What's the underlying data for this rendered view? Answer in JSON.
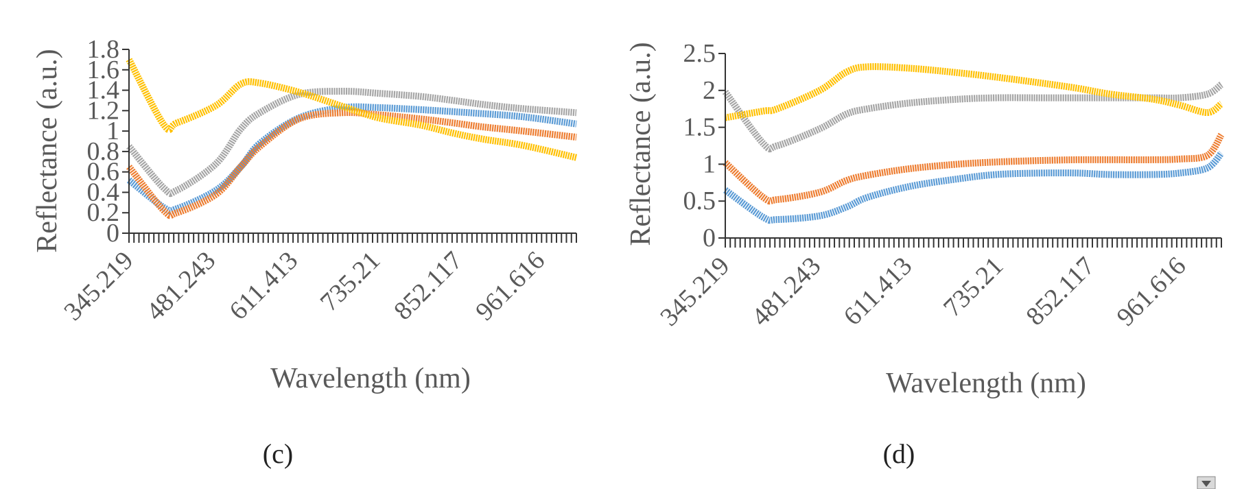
{
  "chart_data": [
    {
      "type": "line",
      "panel_label": "(c)",
      "xlabel": "Wavelength (nm)",
      "ylabel": "Reflectance (a.u.)",
      "x_tick_labels": [
        "345.219",
        "481.243",
        "611.413",
        "735.21",
        "852.117",
        "961.616"
      ],
      "xlim": [
        345.219,
        1045
      ],
      "ylim": [
        0,
        1.8
      ],
      "y_ticks": [
        "0",
        "0.2",
        "0.4",
        "0.6",
        "0.8",
        "1",
        "1.2",
        "1.4",
        "1.6",
        "1.8"
      ],
      "grid": false,
      "x": [
        345.219,
        400,
        420,
        481.243,
        520,
        550,
        611.413,
        680,
        735.21,
        800,
        852.117,
        900,
        961.616,
        1045
      ],
      "series": [
        {
          "color": "#5b9bd5",
          "values": [
            0.52,
            0.25,
            0.24,
            0.42,
            0.65,
            0.88,
            1.13,
            1.23,
            1.23,
            1.21,
            1.19,
            1.17,
            1.14,
            1.07
          ]
        },
        {
          "color": "#ed7d31",
          "values": [
            0.65,
            0.22,
            0.2,
            0.38,
            0.65,
            0.85,
            1.12,
            1.18,
            1.16,
            1.12,
            1.08,
            1.04,
            1.0,
            0.94
          ]
        },
        {
          "color": "#a5a5a5",
          "values": [
            0.85,
            0.44,
            0.42,
            0.68,
            1.02,
            1.18,
            1.36,
            1.39,
            1.37,
            1.34,
            1.3,
            1.26,
            1.22,
            1.18
          ]
        },
        {
          "color": "#ffc000",
          "values": [
            1.7,
            1.06,
            1.08,
            1.25,
            1.46,
            1.47,
            1.38,
            1.24,
            1.13,
            1.06,
            0.98,
            0.92,
            0.86,
            0.74
          ]
        }
      ]
    },
    {
      "type": "line",
      "panel_label": "(d)",
      "xlabel": "Wavelength (nm)",
      "ylabel": "Reflectance (a.u.)",
      "x_tick_labels": [
        "345.219",
        "481.243",
        "611.413",
        "735.21",
        "852.117",
        "961.616"
      ],
      "xlim": [
        345.219,
        1060
      ],
      "ylim": [
        0,
        2.5
      ],
      "y_ticks": [
        "0",
        "0.5",
        "1",
        "1.5",
        "2",
        "2.5"
      ],
      "grid": false,
      "x": [
        345.219,
        400,
        420,
        481.243,
        520,
        550,
        611.413,
        680,
        735.21,
        800,
        852.117,
        900,
        961.616,
        1000,
        1040,
        1060
      ],
      "series": [
        {
          "color": "#5b9bd5",
          "values": [
            0.65,
            0.28,
            0.25,
            0.3,
            0.42,
            0.55,
            0.7,
            0.8,
            0.86,
            0.88,
            0.88,
            0.86,
            0.86,
            0.88,
            0.95,
            1.15
          ]
        },
        {
          "color": "#ed7d31",
          "values": [
            1.02,
            0.55,
            0.52,
            0.62,
            0.78,
            0.85,
            0.94,
            1.0,
            1.03,
            1.05,
            1.06,
            1.06,
            1.06,
            1.07,
            1.12,
            1.4
          ]
        },
        {
          "color": "#a5a5a5",
          "values": [
            1.98,
            1.28,
            1.25,
            1.48,
            1.68,
            1.75,
            1.83,
            1.88,
            1.9,
            1.9,
            1.9,
            1.9,
            1.9,
            1.9,
            1.95,
            2.08
          ]
        },
        {
          "color": "#ffc000",
          "values": [
            1.63,
            1.72,
            1.75,
            2.0,
            2.25,
            2.32,
            2.3,
            2.24,
            2.18,
            2.1,
            2.03,
            1.95,
            1.88,
            1.8,
            1.7,
            1.82
          ]
        }
      ]
    }
  ]
}
